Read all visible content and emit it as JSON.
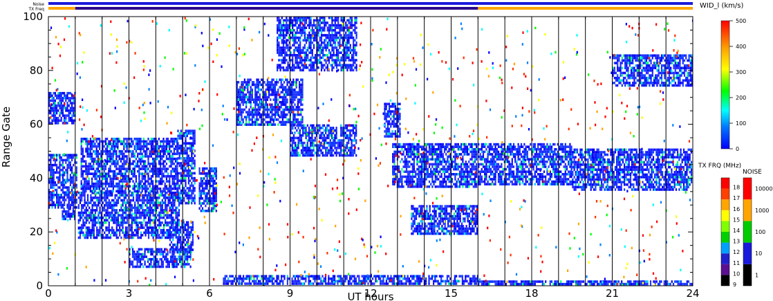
{
  "chart_data": {
    "type": "heatmap",
    "xlabel": "UT hours",
    "ylabel": "Range Gate",
    "xlim": [
      0,
      24
    ],
    "ylim": [
      0,
      100
    ],
    "xticks": [
      0,
      3,
      6,
      9,
      12,
      15,
      18,
      21,
      24
    ],
    "yticks": [
      0,
      20,
      40,
      60,
      80,
      100
    ],
    "status_bars": {
      "noise_label": "Noise",
      "txfreq_label": "TX Freq",
      "noise_color": "#1a1adc",
      "txfreq_segments": [
        {
          "x0": 0,
          "x1": 1.0,
          "color": "#ffa500"
        },
        {
          "x0": 1.0,
          "x1": 16.0,
          "color": "#2a0a8a"
        },
        {
          "x0": 16.0,
          "x1": 24,
          "color": "#ffa500"
        }
      ]
    },
    "wid_scale": {
      "title": "WID_l (km/s)",
      "ticks": [
        0,
        100,
        200,
        300,
        400,
        500
      ],
      "colors": [
        "#0000ff",
        "#0078ff",
        "#00ffff",
        "#00ff00",
        "#ffff00",
        "#ffa500",
        "#ff0000"
      ]
    },
    "txfreq_scale": {
      "title": "TX FRQ (MHz)",
      "labels": [
        "9",
        "10",
        "11",
        "12",
        "13",
        "14",
        "15",
        "16",
        "17",
        "18"
      ],
      "colors": [
        "#000000",
        "#5a1090",
        "#2020cc",
        "#00a0ff",
        "#00d000",
        "#80ff00",
        "#ffff00",
        "#ffa500",
        "#ff4000",
        "#ff0000"
      ]
    },
    "noise_scale": {
      "title": "NOISE",
      "labels": [
        "1",
        "10",
        "100",
        "1000",
        "10000"
      ],
      "colors": [
        "#000000",
        "#1a1adc",
        "#00cc00",
        "#ffa500",
        "#ff0000"
      ]
    },
    "bands": [
      {
        "t0": 0,
        "t1": 1.1,
        "g0": 29,
        "g1": 49
      },
      {
        "t0": 0.5,
        "t1": 1.0,
        "g0": 24,
        "g1": 29
      },
      {
        "t0": 1.1,
        "t1": 4.9,
        "g0": 17,
        "g1": 35
      },
      {
        "t0": 1.2,
        "t1": 4.8,
        "g0": 35,
        "g1": 55
      },
      {
        "t0": 3.0,
        "t1": 5.3,
        "g0": 7,
        "g1": 14
      },
      {
        "t0": 4.5,
        "t1": 5.4,
        "g0": 12,
        "g1": 24
      },
      {
        "t0": 4.8,
        "t1": 5.5,
        "g0": 30,
        "g1": 58
      },
      {
        "t0": 5.6,
        "t1": 6.3,
        "g0": 27,
        "g1": 44
      },
      {
        "t0": 7.0,
        "t1": 9.5,
        "g0": 59,
        "g1": 77
      },
      {
        "t0": 9.0,
        "t1": 11.5,
        "g0": 48,
        "g1": 60
      },
      {
        "t0": 12.5,
        "t1": 13.1,
        "g0": 55,
        "g1": 68
      },
      {
        "t0": 12.8,
        "t1": 16.0,
        "g0": 36,
        "g1": 53
      },
      {
        "t0": 13.5,
        "t1": 16.0,
        "g0": 19,
        "g1": 30
      },
      {
        "t0": 16.0,
        "t1": 19.5,
        "g0": 37,
        "g1": 53
      },
      {
        "t0": 19.5,
        "t1": 24.0,
        "g0": 35,
        "g1": 51
      },
      {
        "t0": 6.5,
        "t1": 16.0,
        "g0": 0,
        "g1": 4
      },
      {
        "t0": 16.0,
        "t1": 24.0,
        "g0": 0,
        "g1": 2
      },
      {
        "t0": 0,
        "t1": 1.0,
        "g0": 60,
        "g1": 72
      },
      {
        "t0": 21.0,
        "t1": 24.0,
        "g0": 74,
        "g1": 86
      },
      {
        "t0": 8.5,
        "t1": 11.5,
        "g0": 80,
        "g1": 100
      }
    ]
  }
}
